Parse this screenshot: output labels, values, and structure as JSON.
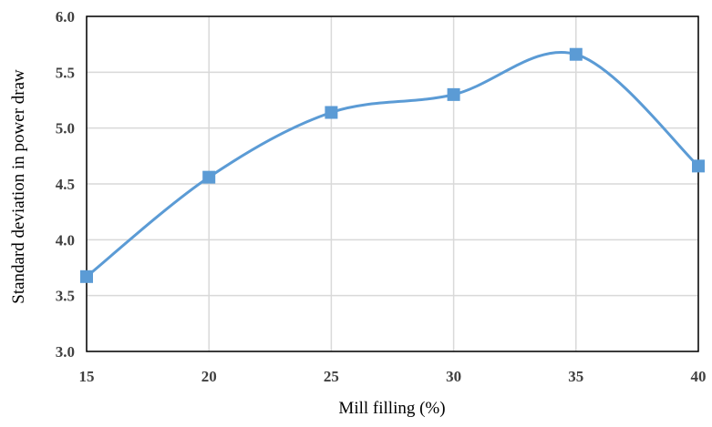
{
  "chart_data": {
    "type": "line",
    "title": "",
    "xlabel": "Mill filling (%)",
    "ylabel": "Standard deviation in power draw",
    "x": [
      15,
      20,
      25,
      30,
      35,
      40
    ],
    "xlim": [
      15,
      40
    ],
    "ylim": [
      3.0,
      6.0
    ],
    "x_ticks": [
      "15",
      "20",
      "25",
      "30",
      "35",
      "40"
    ],
    "y_ticks": [
      "3.0",
      "3.5",
      "4.0",
      "4.5",
      "5.0",
      "5.5",
      "6.0"
    ],
    "grid": true,
    "smooth": true,
    "marker": "square",
    "series": [
      {
        "values": [
          3.67,
          4.56,
          5.14,
          5.3,
          5.66,
          4.66
        ],
        "color": "#5b9bd5"
      }
    ]
  }
}
